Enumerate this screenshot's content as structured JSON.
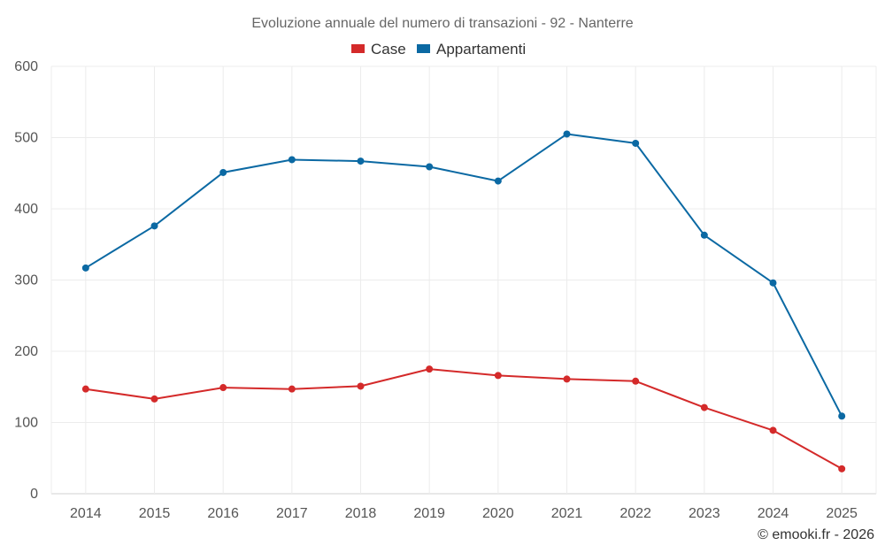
{
  "chart_data": {
    "type": "line",
    "title": "Evoluzione annuale del numero di transazioni - 92 - Nanterre",
    "categories": [
      "2014",
      "2015",
      "2016",
      "2017",
      "2018",
      "2019",
      "2020",
      "2021",
      "2022",
      "2023",
      "2024",
      "2025"
    ],
    "series": [
      {
        "name": "Case",
        "color": "#d42a2a",
        "values": [
          147,
          133,
          149,
          147,
          151,
          175,
          166,
          161,
          158,
          121,
          89,
          35
        ]
      },
      {
        "name": "Appartamenti",
        "color": "#0b69a3",
        "values": [
          317,
          376,
          451,
          469,
          467,
          459,
          439,
          505,
          492,
          363,
          296,
          109
        ]
      }
    ],
    "ylim": [
      0,
      600
    ],
    "yticks": [
      "0",
      "100",
      "200",
      "300",
      "400",
      "500",
      "600"
    ],
    "xlabel": "",
    "ylabel": "",
    "grid": true,
    "legend_position": "top-center"
  },
  "credit": "© emooki.fr - 2026"
}
